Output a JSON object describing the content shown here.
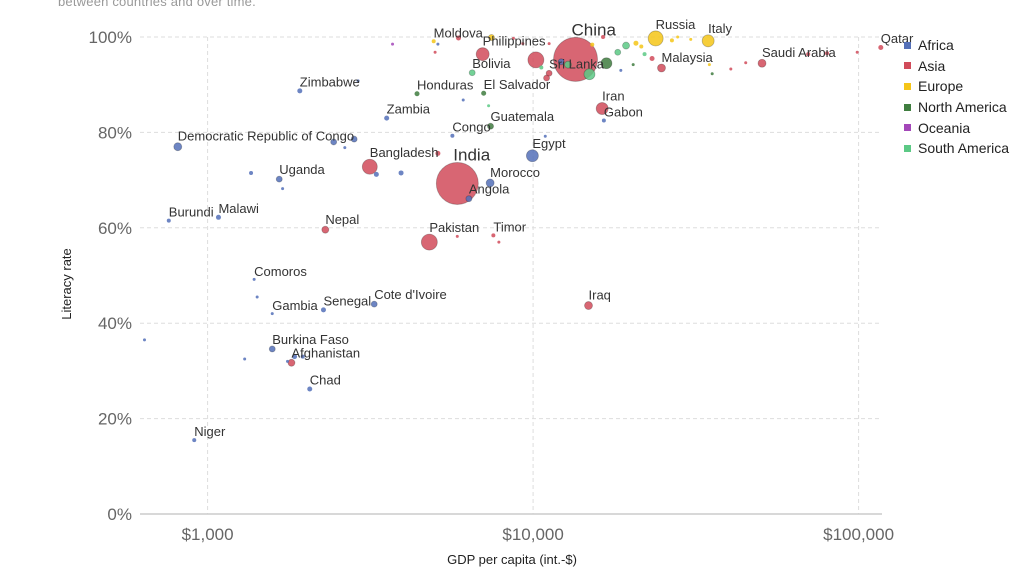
{
  "chart_data": {
    "type": "scatter",
    "title_fragment": "between countries and over time.",
    "xlabel": "GDP per capita (int.-$)",
    "ylabel": "Literacy rate",
    "x_scale": "log",
    "xlim": [
      620,
      118000
    ],
    "ylim": [
      0,
      100
    ],
    "x_ticks": [
      {
        "value": 1000,
        "label": "$1,000"
      },
      {
        "value": 10000,
        "label": "$10,000"
      },
      {
        "value": 100000,
        "label": "$100,000"
      }
    ],
    "y_ticks": [
      {
        "value": 0,
        "label": "0%"
      },
      {
        "value": 20,
        "label": "20%"
      },
      {
        "value": 40,
        "label": "40%"
      },
      {
        "value": 60,
        "label": "60%"
      },
      {
        "value": 80,
        "label": "80%"
      },
      {
        "value": 100,
        "label": "100%"
      }
    ],
    "grid": true,
    "legend_position": "right",
    "legend": [
      {
        "name": "Africa",
        "color": "#5470b8"
      },
      {
        "name": "Asia",
        "color": "#d14b5a"
      },
      {
        "name": "Europe",
        "color": "#f5c518"
      },
      {
        "name": "North America",
        "color": "#3f7d3f"
      },
      {
        "name": "Oceania",
        "color": "#a347b8"
      },
      {
        "name": "South America",
        "color": "#5cc985"
      }
    ],
    "points": [
      {
        "label": "Niger",
        "gdp": 910,
        "literacy": 15.5,
        "region": "Africa",
        "size": 2
      },
      {
        "label": "Burundi",
        "gdp": 760,
        "literacy": 61.5,
        "region": "Africa",
        "size": 2
      },
      {
        "label": "Malawi",
        "gdp": 1080,
        "literacy": 62.2,
        "region": "Africa",
        "size": 2.5
      },
      {
        "label": "Democratic Republic of Congo",
        "gdp": 810,
        "literacy": 77,
        "region": "Africa",
        "size": 4
      },
      {
        "label": "Zimbabwe",
        "gdp": 1920,
        "literacy": 88.7,
        "region": "Africa",
        "size": 2.5
      },
      {
        "label": "Uganda",
        "gdp": 1660,
        "literacy": 70.2,
        "region": "Africa",
        "size": 3
      },
      {
        "label": "Comoros",
        "gdp": 1390,
        "literacy": 49.2,
        "region": "Africa",
        "size": 1.5
      },
      {
        "label": "Gambia",
        "gdp": 1580,
        "literacy": 42,
        "region": "Africa",
        "size": 1.5
      },
      {
        "label": "Senegal",
        "gdp": 2270,
        "literacy": 42.8,
        "region": "Africa",
        "size": 2.5
      },
      {
        "label": "Cote d'Ivoire",
        "gdp": 3250,
        "literacy": 44,
        "region": "Africa",
        "size": 3
      },
      {
        "label": "Burkina Faso",
        "gdp": 1580,
        "literacy": 34.6,
        "region": "Africa",
        "size": 3
      },
      {
        "label": "Afghanistan",
        "gdp": 1810,
        "literacy": 31.7,
        "region": "Asia",
        "size": 3.5
      },
      {
        "label": "Chad",
        "gdp": 2060,
        "literacy": 26.2,
        "region": "Africa",
        "size": 2.5
      },
      {
        "label": "Zambia",
        "gdp": 3550,
        "literacy": 83,
        "region": "Africa",
        "size": 2.5
      },
      {
        "label": "Congo",
        "gdp": 5650,
        "literacy": 79.3,
        "region": "Africa",
        "size": 2
      },
      {
        "label": "Bangladesh",
        "gdp": 3150,
        "literacy": 72.8,
        "region": "Asia",
        "size": 7.5
      },
      {
        "label": "Nepal",
        "gdp": 2300,
        "literacy": 59.6,
        "region": "Asia",
        "size": 3.5
      },
      {
        "label": "India",
        "gdp": 5850,
        "literacy": 69.3,
        "region": "Asia",
        "size": 21
      },
      {
        "label": "Angola",
        "gdp": 6350,
        "literacy": 66.1,
        "region": "Africa",
        "size": 3
      },
      {
        "label": "Morocco",
        "gdp": 7380,
        "literacy": 69.4,
        "region": "Africa",
        "size": 4
      },
      {
        "label": "Egypt",
        "gdp": 9950,
        "literacy": 75.1,
        "region": "Africa",
        "size": 6
      },
      {
        "label": "Pakistan",
        "gdp": 4800,
        "literacy": 57,
        "region": "Asia",
        "size": 8
      },
      {
        "label": "Timor",
        "gdp": 7550,
        "literacy": 58.4,
        "region": "Asia",
        "size": 2
      },
      {
        "label": "Honduras",
        "gdp": 4400,
        "literacy": 88.1,
        "region": "North America",
        "size": 2.5
      },
      {
        "label": "El Salvador",
        "gdp": 7050,
        "literacy": 88.2,
        "region": "North America",
        "size": 2.5
      },
      {
        "label": "Guatemala",
        "gdp": 7400,
        "literacy": 81.3,
        "region": "North America",
        "size": 3
      },
      {
        "label": "Bolivia",
        "gdp": 6500,
        "literacy": 92.5,
        "region": "South America",
        "size": 3
      },
      {
        "label": "Moldova",
        "gdp": 4950,
        "literacy": 99.1,
        "region": "Europe",
        "size": 2
      },
      {
        "label": "Philippines",
        "gdp": 7000,
        "literacy": 96.4,
        "region": "Asia",
        "size": 6.5
      },
      {
        "label": "China",
        "gdp": 13500,
        "literacy": 95.3,
        "region": "Asia",
        "size": 22
      },
      {
        "label": "Sri Lanka",
        "gdp": 11200,
        "literacy": 92.4,
        "region": "Asia",
        "size": 3
      },
      {
        "label": "Iran",
        "gdp": 16300,
        "literacy": 85,
        "region": "Asia",
        "size": 6
      },
      {
        "label": "Gabon",
        "gdp": 16500,
        "literacy": 82.5,
        "region": "Africa",
        "size": 2
      },
      {
        "label": "Iraq",
        "gdp": 14800,
        "literacy": 43.7,
        "region": "Asia",
        "size": 4
      },
      {
        "label": "Russia",
        "gdp": 23800,
        "literacy": 99.7,
        "region": "Europe",
        "size": 7.5
      },
      {
        "label": "Italy",
        "gdp": 34500,
        "literacy": 99.2,
        "region": "Europe",
        "size": 6
      },
      {
        "label": "Malaysia",
        "gdp": 24800,
        "literacy": 93.5,
        "region": "Asia",
        "size": 4
      },
      {
        "label": "Saudi Arabia",
        "gdp": 50500,
        "literacy": 94.5,
        "region": "Asia",
        "size": 4
      },
      {
        "label": "Qatar",
        "gdp": 117000,
        "literacy": 97.8,
        "region": "Asia",
        "size": 2.5
      },
      {
        "label": "",
        "gdp": 640,
        "literacy": 36.5,
        "region": "Africa",
        "size": 1.5
      },
      {
        "label": "",
        "gdp": 1300,
        "literacy": 32.5,
        "region": "Africa",
        "size": 1.5
      },
      {
        "label": "",
        "gdp": 1420,
        "literacy": 45.5,
        "region": "Africa",
        "size": 1.5
      },
      {
        "label": "",
        "gdp": 1850,
        "literacy": 33,
        "region": "Africa",
        "size": 2.5
      },
      {
        "label": "",
        "gdp": 1960,
        "literacy": 33,
        "region": "Africa",
        "size": 2
      },
      {
        "label": "",
        "gdp": 1760,
        "literacy": 32,
        "region": "Africa",
        "size": 1.5
      },
      {
        "label": "",
        "gdp": 1360,
        "literacy": 71.5,
        "region": "Africa",
        "size": 2
      },
      {
        "label": "",
        "gdp": 1700,
        "literacy": 68.2,
        "region": "Africa",
        "size": 1.5
      },
      {
        "label": "",
        "gdp": 2440,
        "literacy": 78,
        "region": "Africa",
        "size": 3
      },
      {
        "label": "",
        "gdp": 2820,
        "literacy": 78.6,
        "region": "Africa",
        "size": 3
      },
      {
        "label": "",
        "gdp": 2640,
        "literacy": 76.8,
        "region": "Africa",
        "size": 1.5
      },
      {
        "label": "",
        "gdp": 3300,
        "literacy": 71.2,
        "region": "Africa",
        "size": 2.5
      },
      {
        "label": "",
        "gdp": 3930,
        "literacy": 71.5,
        "region": "Africa",
        "size": 2.5
      },
      {
        "label": "",
        "gdp": 5100,
        "literacy": 75.6,
        "region": "Asia",
        "size": 2.5
      },
      {
        "label": "",
        "gdp": 5850,
        "literacy": 58.2,
        "region": "Asia",
        "size": 1.5
      },
      {
        "label": "",
        "gdp": 7850,
        "literacy": 57,
        "region": "Asia",
        "size": 1.5
      },
      {
        "label": "",
        "gdp": 10900,
        "literacy": 79.2,
        "region": "Africa",
        "size": 1.5
      },
      {
        "label": "",
        "gdp": 6100,
        "literacy": 86.8,
        "region": "Africa",
        "size": 1.5
      },
      {
        "label": "",
        "gdp": 7300,
        "literacy": 85.6,
        "region": "South America",
        "size": 1.5
      },
      {
        "label": "",
        "gdp": 2900,
        "literacy": 90.8,
        "region": "Africa",
        "size": 1.5
      },
      {
        "label": "",
        "gdp": 3700,
        "literacy": 98.5,
        "region": "Oceania",
        "size": 1.5
      },
      {
        "label": "",
        "gdp": 5100,
        "literacy": 98.5,
        "region": "Africa",
        "size": 1.5
      },
      {
        "label": "",
        "gdp": 5900,
        "literacy": 99.8,
        "region": "Asia",
        "size": 2.5
      },
      {
        "label": "",
        "gdp": 7450,
        "literacy": 99.9,
        "region": "Europe",
        "size": 3
      },
      {
        "label": "",
        "gdp": 8700,
        "literacy": 99.7,
        "region": "Asia",
        "size": 1.5
      },
      {
        "label": "",
        "gdp": 9300,
        "literacy": 98.6,
        "region": "Asia",
        "size": 1.5
      },
      {
        "label": "",
        "gdp": 5000,
        "literacy": 96.8,
        "region": "Asia",
        "size": 1.5
      },
      {
        "label": "",
        "gdp": 10200,
        "literacy": 95.2,
        "region": "Asia",
        "size": 8
      },
      {
        "label": "",
        "gdp": 10600,
        "literacy": 93.6,
        "region": "South America",
        "size": 2
      },
      {
        "label": "",
        "gdp": 11200,
        "literacy": 98.6,
        "region": "Asia",
        "size": 1.5
      },
      {
        "label": "",
        "gdp": 11000,
        "literacy": 91.4,
        "region": "Asia",
        "size": 3
      },
      {
        "label": "",
        "gdp": 12200,
        "literacy": 94.8,
        "region": "Africa",
        "size": 3
      },
      {
        "label": "",
        "gdp": 12800,
        "literacy": 94.2,
        "region": "South America",
        "size": 3.5
      },
      {
        "label": "",
        "gdp": 14900,
        "literacy": 92.2,
        "region": "South America",
        "size": 5.5
      },
      {
        "label": "",
        "gdp": 16800,
        "literacy": 94.5,
        "region": "North America",
        "size": 5.5
      },
      {
        "label": "",
        "gdp": 15200,
        "literacy": 98.4,
        "region": "Europe",
        "size": 2
      },
      {
        "label": "",
        "gdp": 16400,
        "literacy": 100,
        "region": "Asia",
        "size": 2
      },
      {
        "label": "",
        "gdp": 18200,
        "literacy": 96.8,
        "region": "South America",
        "size": 3
      },
      {
        "label": "",
        "gdp": 19300,
        "literacy": 98.2,
        "region": "South America",
        "size": 3.5
      },
      {
        "label": "",
        "gdp": 20700,
        "literacy": 98.7,
        "region": "Europe",
        "size": 2.5
      },
      {
        "label": "",
        "gdp": 20300,
        "literacy": 94.2,
        "region": "North America",
        "size": 1.5
      },
      {
        "label": "",
        "gdp": 18600,
        "literacy": 93,
        "region": "Africa",
        "size": 1.5
      },
      {
        "label": "",
        "gdp": 22000,
        "literacy": 96.4,
        "region": "South America",
        "size": 2
      },
      {
        "label": "",
        "gdp": 23200,
        "literacy": 95.5,
        "region": "Asia",
        "size": 2.5
      },
      {
        "label": "",
        "gdp": 26700,
        "literacy": 99.3,
        "region": "Europe",
        "size": 2
      },
      {
        "label": "",
        "gdp": 34800,
        "literacy": 94.2,
        "region": "Europe",
        "size": 1.5
      },
      {
        "label": "",
        "gdp": 35500,
        "literacy": 92.3,
        "region": "North America",
        "size": 1.5
      },
      {
        "label": "",
        "gdp": 40500,
        "literacy": 93.3,
        "region": "Asia",
        "size": 1.5
      },
      {
        "label": "",
        "gdp": 45000,
        "literacy": 94.6,
        "region": "Asia",
        "size": 1.5
      },
      {
        "label": "",
        "gdp": 70000,
        "literacy": 96.4,
        "region": "Asia",
        "size": 2
      },
      {
        "label": "",
        "gdp": 80000,
        "literacy": 96.6,
        "region": "Asia",
        "size": 2
      },
      {
        "label": "",
        "gdp": 99000,
        "literacy": 96.8,
        "region": "Asia",
        "size": 1.5
      },
      {
        "label": "",
        "gdp": 21500,
        "literacy": 98,
        "region": "Europe",
        "size": 2
      },
      {
        "label": "",
        "gdp": 27800,
        "literacy": 100,
        "region": "Europe",
        "size": 1.5
      },
      {
        "label": "",
        "gdp": 30500,
        "literacy": 99.5,
        "region": "Europe",
        "size": 1.5
      }
    ]
  }
}
